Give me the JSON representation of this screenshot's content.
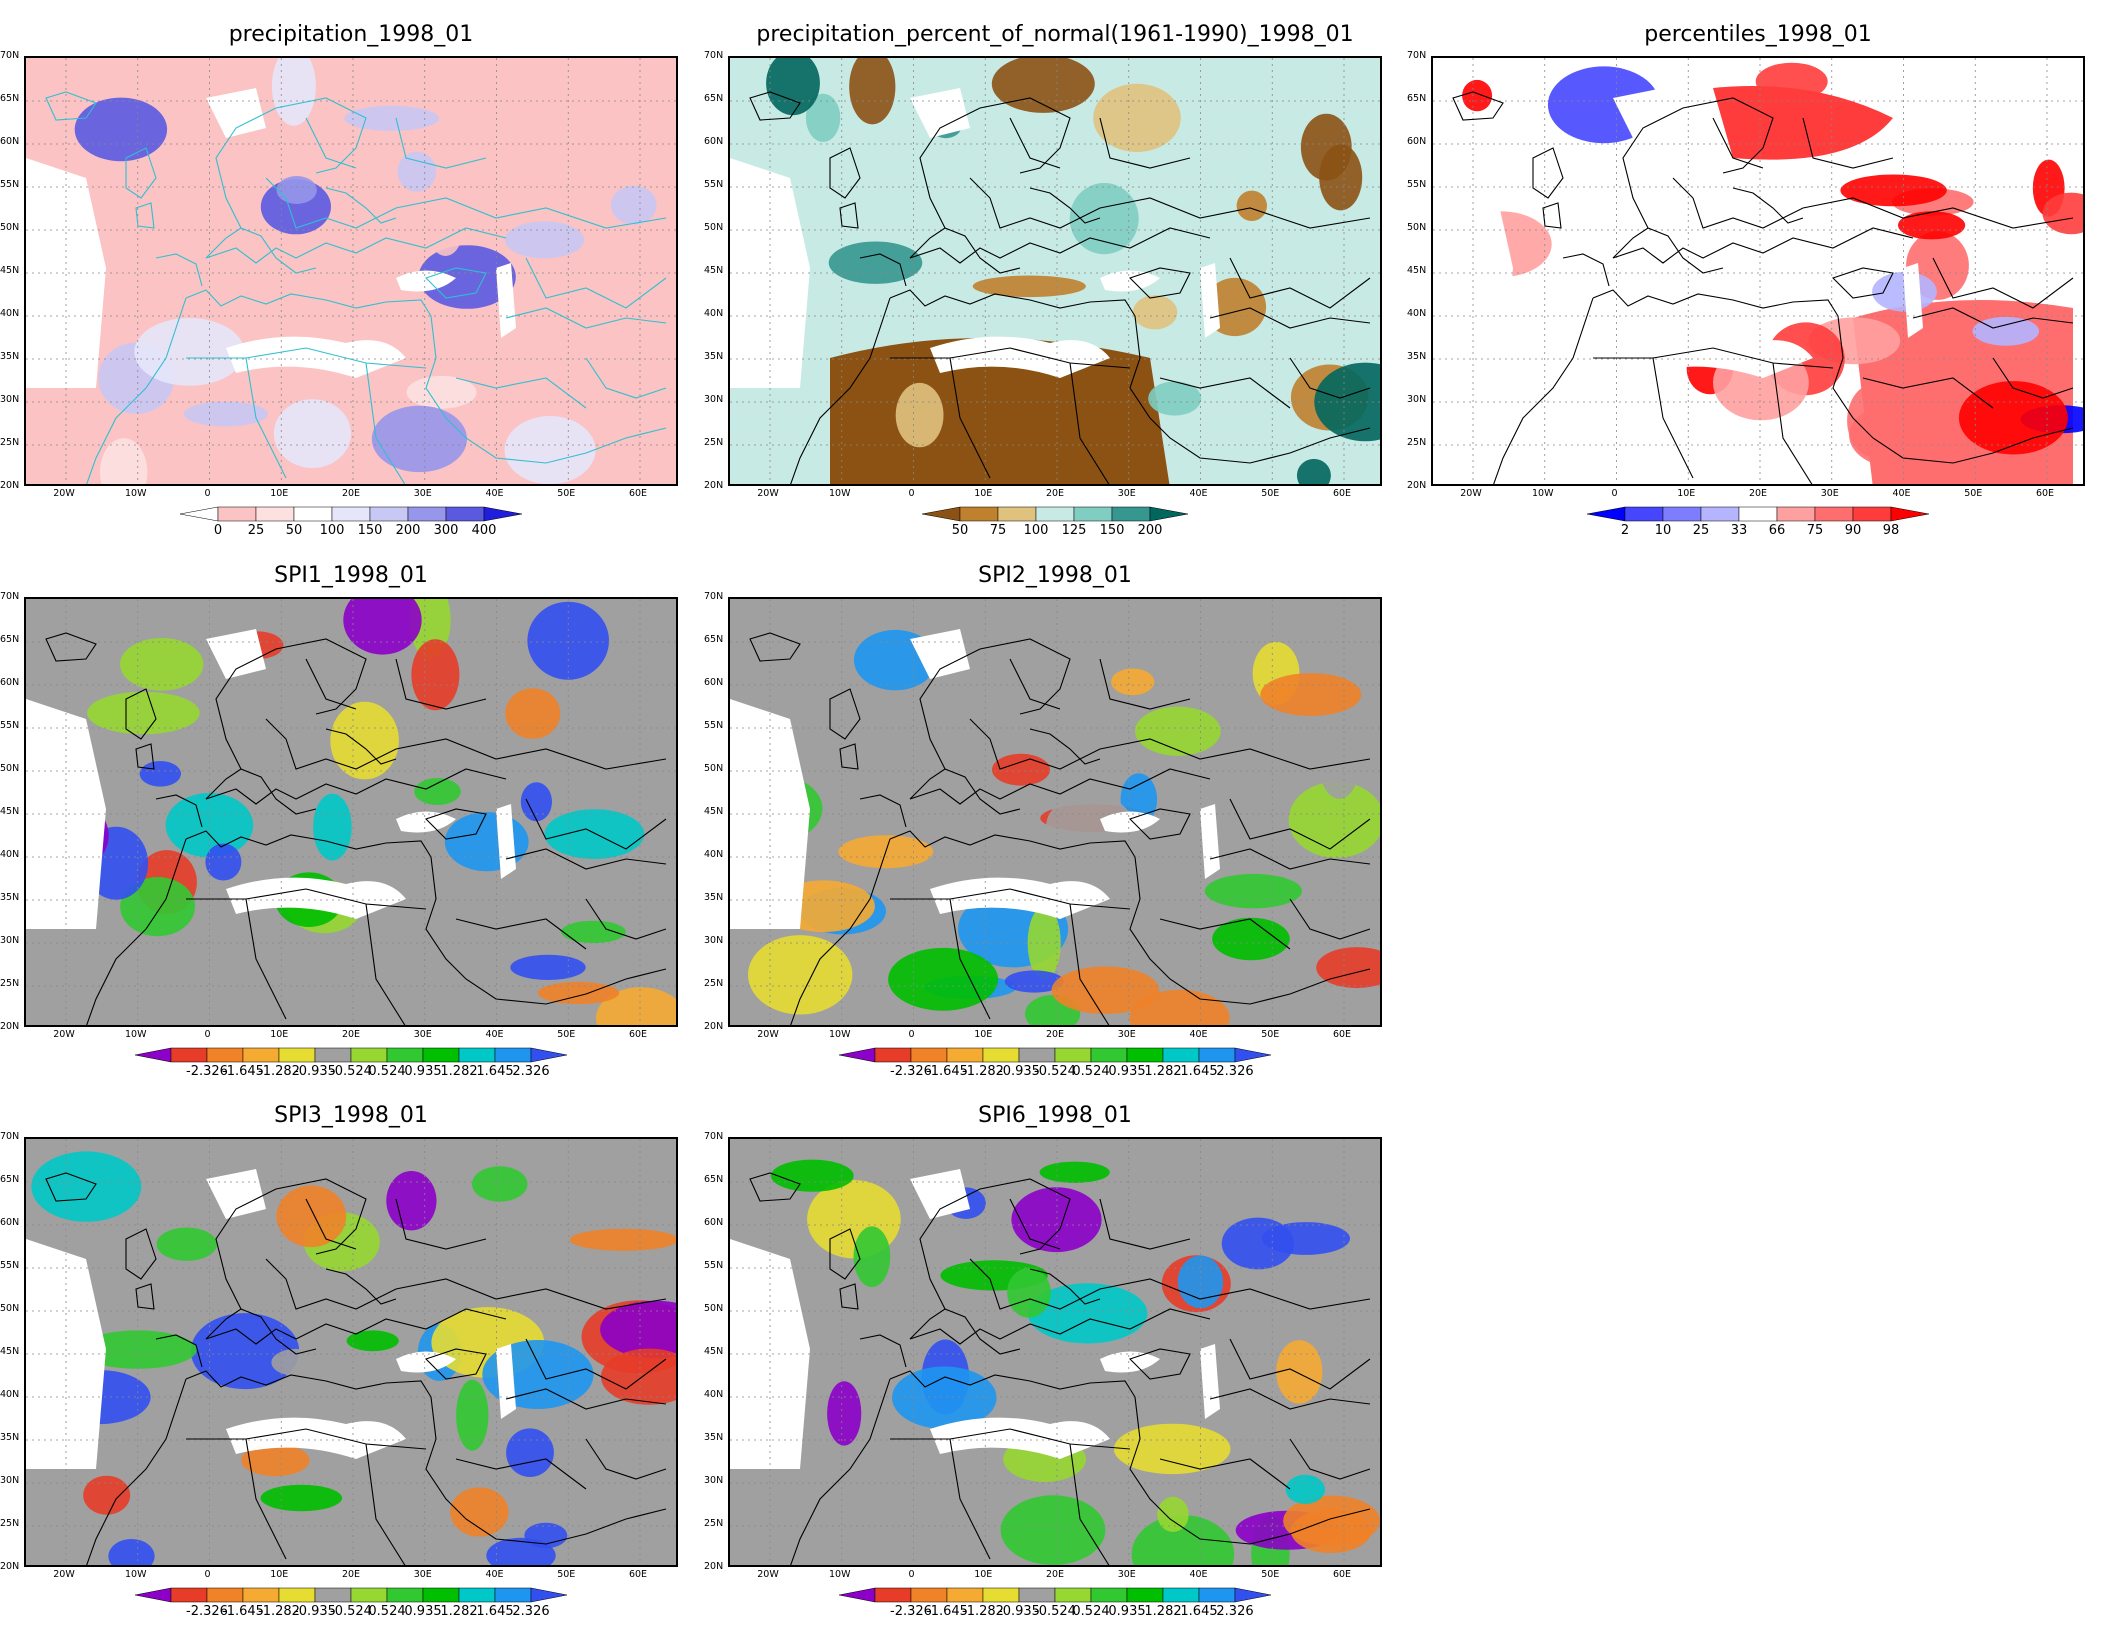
{
  "panels": [
    {
      "id": "precip",
      "title": "precipitation_1998_01",
      "colorbar": {
        "colors": [
          "#ffffff",
          "#fbc3c3",
          "#fde1e1",
          "#ffffff",
          "#e6e6fb",
          "#c8c8f5",
          "#9696eb",
          "#5a5ae1",
          "#1e1edc"
        ],
        "labels": [
          "0",
          "25",
          "50",
          "100",
          "150",
          "200",
          "300",
          "400"
        ],
        "left_dashed": true
      },
      "blobs": [
        {
          "c": "#fbc3c3"
        },
        {
          "c": "#f9b0b0"
        },
        {
          "c": "#fde1e1"
        },
        {
          "c": "#c8c8f5"
        },
        {
          "c": "#9696eb"
        }
      ]
    },
    {
      "id": "pnormal",
      "title": "precipitation_percent_of_normal(1961-1990)_1998_01",
      "colorbar": {
        "colors": [
          "#8c5214",
          "#bf812d",
          "#dfc27d",
          "#c7eae5",
          "#80cdc1",
          "#35978f",
          "#01665e"
        ],
        "labels": [
          "50",
          "75",
          "100",
          "125",
          "150",
          "200"
        ]
      }
    },
    {
      "id": "pctl",
      "title": "percentiles_1998_01",
      "colorbar": {
        "colors": [
          "#0000ff",
          "#4646ff",
          "#7d7dff",
          "#b4b4ff",
          "#ffffff",
          "#ffa0a0",
          "#ff6e6e",
          "#ff3c3c",
          "#ff0000"
        ],
        "labels": [
          "2",
          "10",
          "25",
          "33",
          "66",
          "75",
          "90",
          "98"
        ]
      }
    },
    {
      "id": "spi1",
      "title": "SPI1_1998_01",
      "colorbar": {
        "colors": [
          "#8c00c8",
          "#e63c28",
          "#f08228",
          "#f5aa32",
          "#e6dc32",
          "#a0a0a0",
          "#96d732",
          "#32c832",
          "#00be00",
          "#00c8c8",
          "#1e96f0",
          "#3250f0"
        ],
        "labels": [
          "-2.326",
          "-1.645",
          "-1.282",
          "-0.935",
          "-0.524",
          "0.524",
          "0.935",
          "1.282",
          "1.645",
          "2.326"
        ]
      }
    },
    {
      "id": "spi2",
      "title": "SPI2_1998_01",
      "colorbar": {
        "colors": [
          "#8c00c8",
          "#e63c28",
          "#f08228",
          "#f5aa32",
          "#e6dc32",
          "#a0a0a0",
          "#96d732",
          "#32c832",
          "#00be00",
          "#00c8c8",
          "#1e96f0",
          "#3250f0"
        ],
        "labels": [
          "-2.326",
          "-1.645",
          "-1.282",
          "-0.935",
          "-0.524",
          "0.524",
          "0.935",
          "1.282",
          "1.645",
          "2.326"
        ]
      }
    },
    {
      "id": "spi3",
      "title": "SPI3_1998_01",
      "colorbar": {
        "colors": [
          "#8c00c8",
          "#e63c28",
          "#f08228",
          "#f5aa32",
          "#e6dc32",
          "#a0a0a0",
          "#96d732",
          "#32c832",
          "#00be00",
          "#00c8c8",
          "#1e96f0",
          "#3250f0"
        ],
        "labels": [
          "-2.326",
          "-1.645",
          "-1.282",
          "-0.935",
          "-0.524",
          "0.524",
          "0.935",
          "1.282",
          "1.645",
          "2.326"
        ]
      }
    },
    {
      "id": "spi6",
      "title": "SPI6_1998_01",
      "colorbar": {
        "colors": [
          "#8c00c8",
          "#e63c28",
          "#f08228",
          "#f5aa32",
          "#e6dc32",
          "#a0a0a0",
          "#96d732",
          "#32c832",
          "#00be00",
          "#00c8c8",
          "#1e96f0",
          "#3250f0"
        ],
        "labels": [
          "-2.326",
          "-1.645",
          "-1.282",
          "-0.935",
          "-0.524",
          "0.524",
          "0.935",
          "1.282",
          "1.645",
          "2.326"
        ]
      }
    }
  ],
  "lat_labels": [
    "70N",
    "65N",
    "60N",
    "55N",
    "50N",
    "45N",
    "40N",
    "35N",
    "30N",
    "25N",
    "20N"
  ],
  "lon_labels": [
    "20W",
    "10W",
    "0",
    "10E",
    "20E",
    "30E",
    "40E",
    "50E",
    "60E"
  ]
}
